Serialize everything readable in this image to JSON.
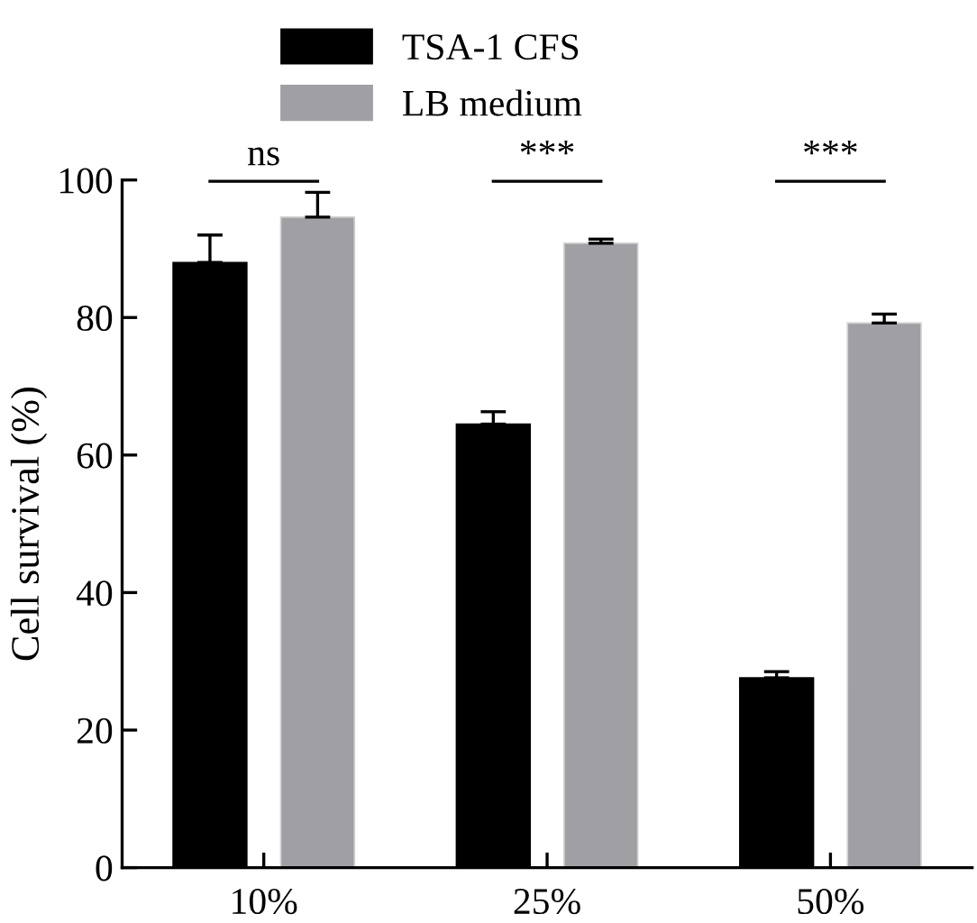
{
  "chart_data": {
    "type": "bar",
    "ylabel": "Cell survival (%)",
    "categories": [
      "10%",
      "25%",
      "50%"
    ],
    "series": [
      {
        "name": "TSA-1 CFS",
        "color": "#000000",
        "values": [
          88.0,
          64.5,
          27.6
        ],
        "errors": [
          [
            88.0,
            92.0
          ],
          [
            64.5,
            66.3
          ],
          [
            27.6,
            28.5
          ]
        ]
      },
      {
        "name": "LB medium",
        "color": "#a0a0a4",
        "values": [
          94.6,
          90.8,
          79.2
        ],
        "errors": [
          [
            94.6,
            98.2
          ],
          [
            90.8,
            91.4
          ],
          [
            79.2,
            80.5
          ]
        ]
      }
    ],
    "annotations": [
      "ns",
      "***",
      "***"
    ],
    "ylim": [
      0,
      100
    ],
    "yticks": [
      0,
      20,
      40,
      60,
      80,
      100
    ],
    "grid": false,
    "legend": "top left"
  }
}
